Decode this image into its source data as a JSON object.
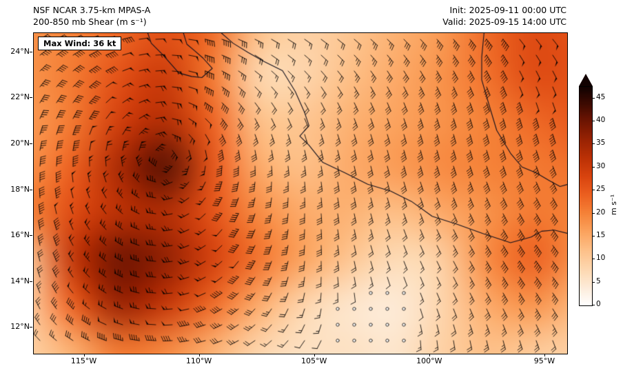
{
  "header": {
    "title_line1": "NSF NCAR 3.75-km MPAS-A",
    "title_line2": "200-850 mb Shear (m s⁻¹)",
    "init_label": "Init: 2025-09-11 00:00 UTC",
    "valid_label": "Valid: 2025-09-15 14:00 UTC"
  },
  "map": {
    "max_wind_label": "Max Wind: 36 kt",
    "x_ticks": [
      {
        "lon": -115,
        "label": "115°W"
      },
      {
        "lon": -110,
        "label": "110°W"
      },
      {
        "lon": -105,
        "label": "105°W"
      },
      {
        "lon": -100,
        "label": "100°W"
      },
      {
        "lon": -95,
        "label": "95°W"
      }
    ],
    "y_ticks": [
      {
        "lat": 24,
        "label": "24°N"
      },
      {
        "lat": 22,
        "label": "22°N"
      },
      {
        "lat": 20,
        "label": "20°N"
      },
      {
        "lat": 18,
        "label": "18°N"
      },
      {
        "lat": 16,
        "label": "16°N"
      },
      {
        "lat": 14,
        "label": "14°N"
      },
      {
        "lat": 12,
        "label": "12°N"
      }
    ]
  },
  "colorbar": {
    "label": "m s⁻¹",
    "vmin": 0,
    "vmax": 47.5,
    "ticks": [
      45,
      40,
      35,
      30,
      25,
      20,
      15,
      10,
      5,
      0
    ]
  },
  "chart_data": {
    "type": "heatmap",
    "title": "200-850 mb Shear",
    "units": "m s⁻¹",
    "extent": {
      "lon_min": -117.2,
      "lon_max": -94.04,
      "lat_min": 10.86,
      "lat_max": 24.84
    },
    "grid": {
      "lons": [
        -117.5,
        -115.5,
        -113.5,
        -111.5,
        -109.5,
        -107.5,
        -105.5,
        -103.5,
        -101.5,
        -99.5,
        -97.5,
        -95.5,
        -93.5
      ],
      "lats": [
        25,
        23,
        21,
        19,
        17,
        15,
        13,
        11
      ],
      "values_mps": [
        [
          18,
          20,
          23,
          26,
          23,
          12,
          9,
          11,
          14,
          17,
          23,
          27,
          26
        ],
        [
          18,
          21,
          26,
          30,
          21,
          8,
          8,
          12,
          15,
          18,
          22,
          27,
          26
        ],
        [
          17,
          21,
          29,
          33,
          24,
          12,
          11,
          14,
          16,
          18,
          20,
          23,
          25
        ],
        [
          18,
          24,
          34,
          42,
          26,
          15,
          12,
          15,
          17,
          19,
          20,
          21,
          22
        ],
        [
          20,
          27,
          32,
          33,
          26,
          19,
          15,
          14,
          12,
          15,
          18,
          21,
          20
        ],
        [
          10,
          31,
          40,
          37,
          29,
          22,
          16,
          11,
          7,
          9,
          19,
          24,
          18
        ],
        [
          9,
          24,
          36,
          31,
          23,
          15,
          8,
          5,
          4,
          8,
          15,
          18,
          13
        ],
        [
          9,
          14,
          21,
          19,
          14,
          8,
          6,
          6,
          5,
          9,
          12,
          10,
          9
        ]
      ]
    },
    "vortex_center": {
      "lon": -111.6,
      "lat": 19.5
    },
    "calm_circle_threshold_mps": 6,
    "colormap_stops": [
      [
        0,
        "#ffffff"
      ],
      [
        3,
        "#fdf0e2"
      ],
      [
        7,
        "#fddcb8"
      ],
      [
        12,
        "#fdc088"
      ],
      [
        16,
        "#fba35e"
      ],
      [
        20,
        "#f58238"
      ],
      [
        24,
        "#ec6020"
      ],
      [
        28,
        "#d9440f"
      ],
      [
        32,
        "#bc3105"
      ],
      [
        36,
        "#992303"
      ],
      [
        40,
        "#6f1502"
      ],
      [
        44,
        "#3c0a01"
      ],
      [
        47.5,
        "#120201"
      ]
    ],
    "coastlines": [
      [
        [
          -112.25,
          24.84
        ],
        [
          -112.1,
          24.4
        ],
        [
          -111.6,
          23.9
        ],
        [
          -110.9,
          23.1
        ],
        [
          -110.35,
          22.95
        ],
        [
          -109.9,
          22.9
        ],
        [
          -109.45,
          23.3
        ],
        [
          -109.85,
          23.75
        ],
        [
          -110.25,
          24.1
        ],
        [
          -110.55,
          24.35
        ],
        [
          -110.7,
          24.84
        ]
      ],
      [
        [
          -109.05,
          24.84
        ],
        [
          -108.55,
          24.4
        ],
        [
          -107.9,
          24.0
        ],
        [
          -107.2,
          23.6
        ],
        [
          -106.4,
          23.2
        ],
        [
          -105.85,
          22.3
        ],
        [
          -105.45,
          21.4
        ],
        [
          -105.25,
          20.8
        ],
        [
          -105.65,
          20.35
        ],
        [
          -105.25,
          19.95
        ],
        [
          -104.65,
          19.2
        ],
        [
          -103.7,
          18.75
        ],
        [
          -102.7,
          18.25
        ],
        [
          -101.7,
          17.95
        ],
        [
          -100.8,
          17.5
        ],
        [
          -99.9,
          16.85
        ],
        [
          -98.8,
          16.5
        ],
        [
          -97.7,
          16.1
        ],
        [
          -96.5,
          15.7
        ],
        [
          -95.6,
          15.95
        ],
        [
          -95.15,
          16.2
        ],
        [
          -94.6,
          16.25
        ],
        [
          -94.0,
          16.1
        ],
        [
          -93.6,
          15.6
        ]
      ],
      [
        [
          -97.65,
          24.84
        ],
        [
          -97.75,
          23.8
        ],
        [
          -97.75,
          22.8
        ],
        [
          -97.4,
          21.6
        ],
        [
          -97.1,
          20.6
        ],
        [
          -96.5,
          19.6
        ],
        [
          -96.0,
          19.0
        ],
        [
          -95.4,
          18.75
        ],
        [
          -94.8,
          18.4
        ],
        [
          -94.35,
          18.15
        ],
        [
          -94.0,
          18.25
        ]
      ]
    ]
  }
}
